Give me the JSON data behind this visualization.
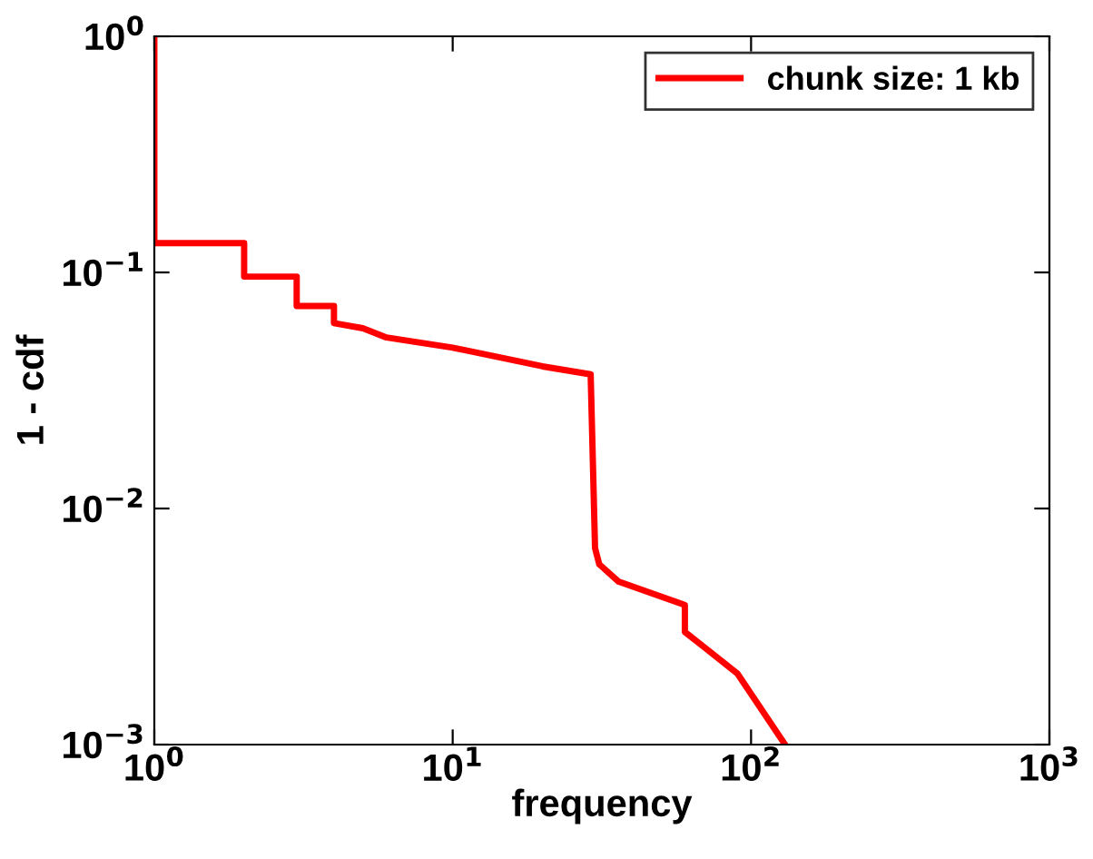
{
  "chart_data": {
    "type": "line",
    "xlabel": "frequency",
    "ylabel": "1 - cdf",
    "log": "xy",
    "legend": "top right",
    "grid": false,
    "xlim": [
      1,
      1000
    ],
    "ylim": [
      0.001,
      1
    ],
    "xticks": [
      {
        "value": 1,
        "label": "10$^{0}$"
      },
      {
        "value": 10,
        "label": "10$^{1}$"
      },
      {
        "value": 100,
        "label": "10$^{2}$"
      },
      {
        "value": 1000,
        "label": "10$^{3}$"
      }
    ],
    "yticks": [
      {
        "value": 0.001,
        "label": "10$^{−3}$"
      },
      {
        "value": 0.01,
        "label": "10$^{−2}$"
      },
      {
        "value": 0.1,
        "label": "10$^{−1}$"
      },
      {
        "value": 1,
        "label": "10$^{0}$"
      }
    ],
    "series": [
      {
        "name": "chunk size: 1 kb",
        "color": "#ff0000",
        "x": [
          1,
          1,
          2,
          2,
          3,
          3,
          4,
          4,
          5,
          6,
          10,
          20,
          29,
          30,
          31,
          36,
          60,
          60,
          90,
          130
        ],
        "values": [
          1,
          0.133,
          0.133,
          0.096,
          0.096,
          0.072,
          0.072,
          0.061,
          0.058,
          0.053,
          0.048,
          0.04,
          0.037,
          0.0068,
          0.0058,
          0.0049,
          0.0039,
          0.003,
          0.002,
          0.001
        ]
      }
    ]
  }
}
